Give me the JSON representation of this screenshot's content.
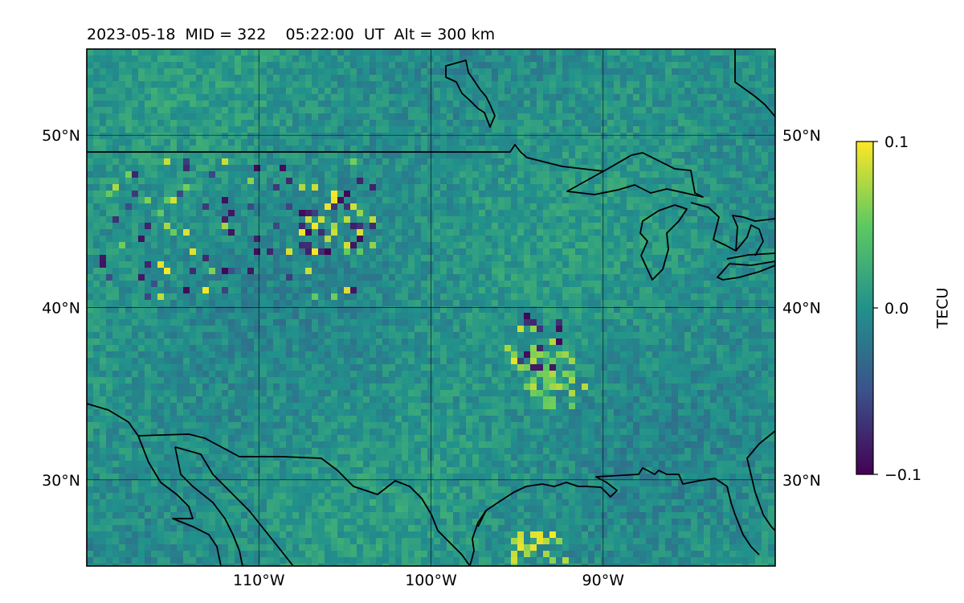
{
  "title": "2023-05-18  MID = 322    05:22:00  UT  Alt = 300 km",
  "map": {
    "projection": "PlateCarree",
    "extent": {
      "lon_min": -120,
      "lon_max": -80,
      "lat_min": 25,
      "lat_max": 55
    },
    "grid": true,
    "lon_ticks": [
      {
        "value": -110,
        "label": "110°W"
      },
      {
        "value": -100,
        "label": "100°W"
      },
      {
        "value": -90,
        "label": "90°W"
      }
    ],
    "lat_ticks": [
      {
        "value": 50,
        "label": "50°N"
      },
      {
        "value": 40,
        "label": "40°N"
      },
      {
        "value": 30,
        "label": "30°N"
      }
    ],
    "features": [
      "coastlines",
      "borders"
    ]
  },
  "colorbar": {
    "colormap": "viridis",
    "vmin": -0.1,
    "vmax": 0.1,
    "label": "TECU",
    "ticks": [
      {
        "value": 0.1,
        "label": "0.1"
      },
      {
        "value": 0.0,
        "label": "0.0"
      },
      {
        "value": -0.1,
        "label": "−0.1"
      }
    ],
    "colors": [
      "#440154",
      "#3b528b",
      "#21918c",
      "#5ec962",
      "#fde725"
    ]
  },
  "chart_data": {
    "type": "heatmap",
    "title": "2023-05-18  MID = 322    05:22:00  UT  Alt = 300 km",
    "variable": "TECU",
    "value_range": [
      -0.1,
      0.1
    ],
    "x_extent_deg": [
      -120,
      -80
    ],
    "y_extent_deg": [
      25,
      55
    ],
    "notable_regions": [
      {
        "lon": -106,
        "lat": 45,
        "values": [
          -0.1,
          0.1
        ]
      },
      {
        "lon": -94,
        "lat": 38,
        "values": [
          -0.1,
          0.1
        ]
      },
      {
        "lon": -93,
        "lat": 36,
        "values": [
          0.08
        ]
      },
      {
        "lon": -94,
        "lat": 25.5,
        "values": [
          0.1
        ]
      }
    ]
  }
}
